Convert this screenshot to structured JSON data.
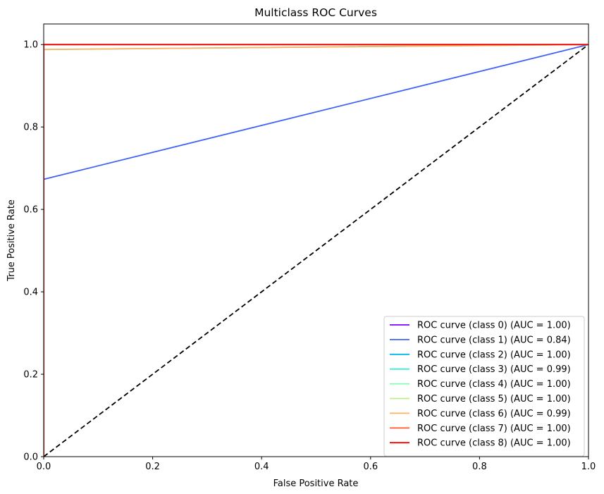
{
  "chart_data": {
    "type": "line",
    "title": "Multiclass ROC Curves",
    "xlabel": "False Positive Rate",
    "ylabel": "True Positive Rate",
    "xlim": [
      0.0,
      1.0
    ],
    "ylim": [
      0.0,
      1.05
    ],
    "xticks": [
      "0.0",
      "0.2",
      "0.4",
      "0.6",
      "0.8",
      "1.0"
    ],
    "yticks": [
      "0.0",
      "0.2",
      "0.4",
      "0.6",
      "0.8",
      "1.0"
    ],
    "xtick_values": [
      0.0,
      0.2,
      0.4,
      0.6,
      0.8,
      1.0
    ],
    "ytick_values": [
      0.0,
      0.2,
      0.4,
      0.6,
      0.8,
      1.0
    ],
    "grid": false,
    "legend_position": "lower-right",
    "series": [
      {
        "name": "ROC curve (class 0) (AUC = 1.00)",
        "color": "#8000ff",
        "x": [
          0,
          0,
          1
        ],
        "y": [
          0,
          1.0,
          1.0
        ]
      },
      {
        "name": "ROC curve (class 1) (AUC = 0.84)",
        "color": "#4062f9",
        "x": [
          0,
          0,
          1
        ],
        "y": [
          0,
          0.673,
          1.0
        ]
      },
      {
        "name": "ROC curve (class 2) (AUC = 1.00)",
        "color": "#00b5eb",
        "x": [
          0,
          0,
          1
        ],
        "y": [
          0,
          1.0,
          1.0
        ]
      },
      {
        "name": "ROC curve (class 3) (AUC = 0.99)",
        "color": "#40ecd4",
        "x": [
          0,
          0,
          1
        ],
        "y": [
          0,
          0.988,
          1.0
        ]
      },
      {
        "name": "ROC curve (class 4) (AUC = 1.00)",
        "color": "#80ffb4",
        "x": [
          0,
          0,
          1
        ],
        "y": [
          0,
          1.0,
          1.0
        ]
      },
      {
        "name": "ROC curve (class 5) (AUC = 1.00)",
        "color": "#c0eb8d",
        "x": [
          0,
          0,
          1
        ],
        "y": [
          0,
          1.0,
          1.0
        ]
      },
      {
        "name": "ROC curve (class 6) (AUC = 0.99)",
        "color": "#ffb360",
        "x": [
          0,
          0,
          1
        ],
        "y": [
          0,
          0.988,
          1.0
        ]
      },
      {
        "name": "ROC curve (class 7) (AUC = 1.00)",
        "color": "#ff6130",
        "x": [
          0,
          0,
          1
        ],
        "y": [
          0,
          1.0,
          1.0
        ]
      },
      {
        "name": "ROC curve (class 8) (AUC = 1.00)",
        "color": "#ff0000",
        "x": [
          0,
          0,
          1
        ],
        "y": [
          0,
          1.0,
          1.0
        ]
      }
    ],
    "reference_line": {
      "x": [
        0,
        1
      ],
      "y": [
        0,
        1
      ],
      "color": "#000000",
      "style": "dashed"
    }
  }
}
